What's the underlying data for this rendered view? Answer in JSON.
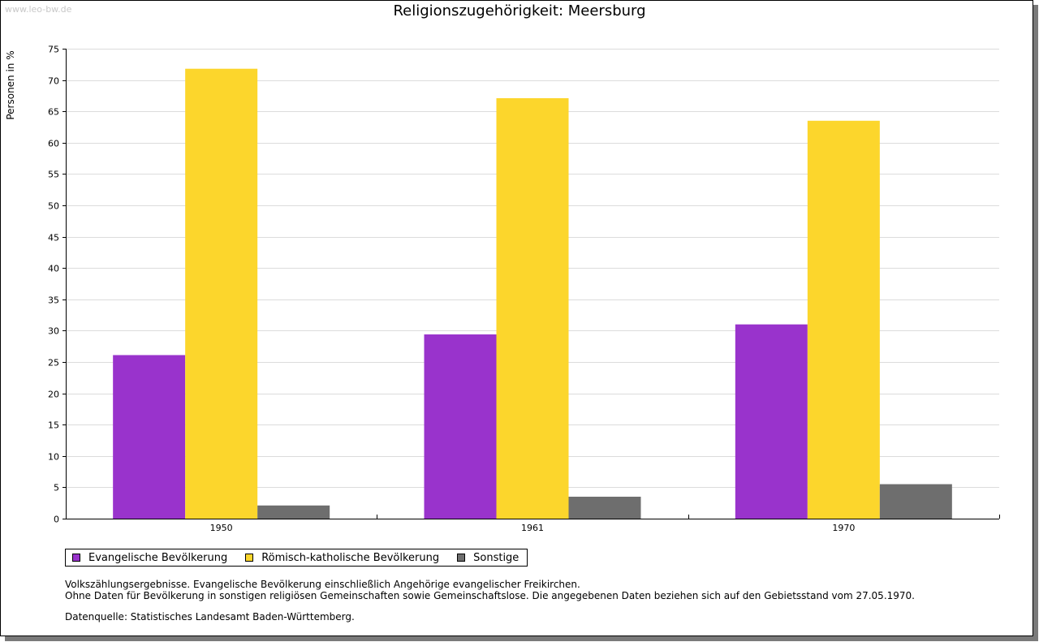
{
  "watermark": "www.leo-bw.de",
  "chart_data": {
    "type": "bar",
    "title": "Religionszugehörigkeit: Meersburg",
    "xlabel": "",
    "ylabel": "Personen in %",
    "ylim": [
      0,
      75
    ],
    "yticks": [
      0,
      5,
      10,
      15,
      20,
      25,
      30,
      35,
      40,
      45,
      50,
      55,
      60,
      65,
      70,
      75
    ],
    "grid": true,
    "categories": [
      "1950",
      "1961",
      "1970"
    ],
    "series": [
      {
        "name": "Evangelische Bevölkerung",
        "color": "#9933cc",
        "values": [
          26.1,
          29.4,
          31.0
        ]
      },
      {
        "name": "Römisch-katholische Bevölkerung",
        "color": "#fcd62c",
        "values": [
          71.8,
          67.1,
          63.5
        ]
      },
      {
        "name": "Sonstige",
        "color": "#6e6e6e",
        "values": [
          2.1,
          3.5,
          5.5
        ]
      }
    ]
  },
  "notes": {
    "line1": "Volkszählungsergebnisse. Evangelische Bevölkerung einschließlich Angehörige evangelischer Freikirchen.",
    "line2": "Ohne Daten für Bevölkerung in sonstigen religiösen Gemeinschaften sowie Gemeinschaftslose. Die angegebenen Daten beziehen sich auf den Gebietsstand vom 27.05.1970.",
    "source": "Datenquelle: Statistisches Landesamt Baden-Württemberg."
  }
}
